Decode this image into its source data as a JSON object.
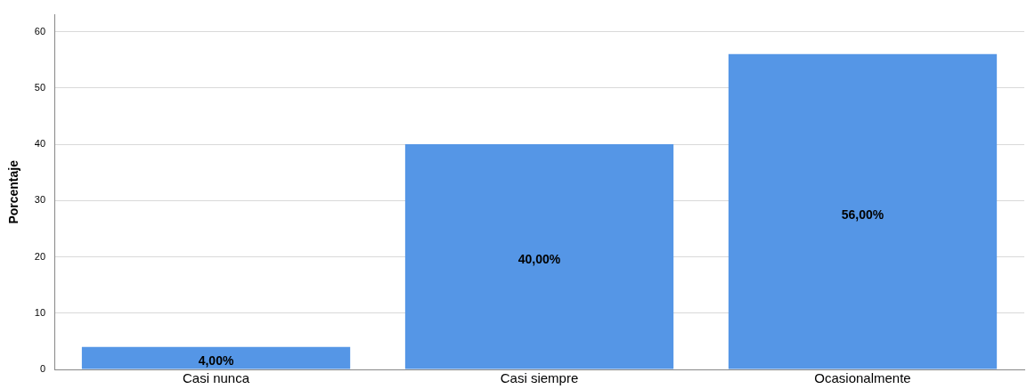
{
  "chart_data": {
    "type": "bar",
    "ylabel": "Porcentaje",
    "categories": [
      "Casi nunca",
      "Casi siempre",
      "Ocasionalmente"
    ],
    "values": [
      4,
      40,
      56
    ],
    "color": "#5596e6",
    "value_labels": [
      "4,00%",
      "40,00%",
      "56,00%"
    ],
    "ylim": [
      0,
      63
    ],
    "yticks": [
      0,
      10,
      20,
      30,
      40,
      50,
      60
    ],
    "grid": "y",
    "legend": false
  }
}
